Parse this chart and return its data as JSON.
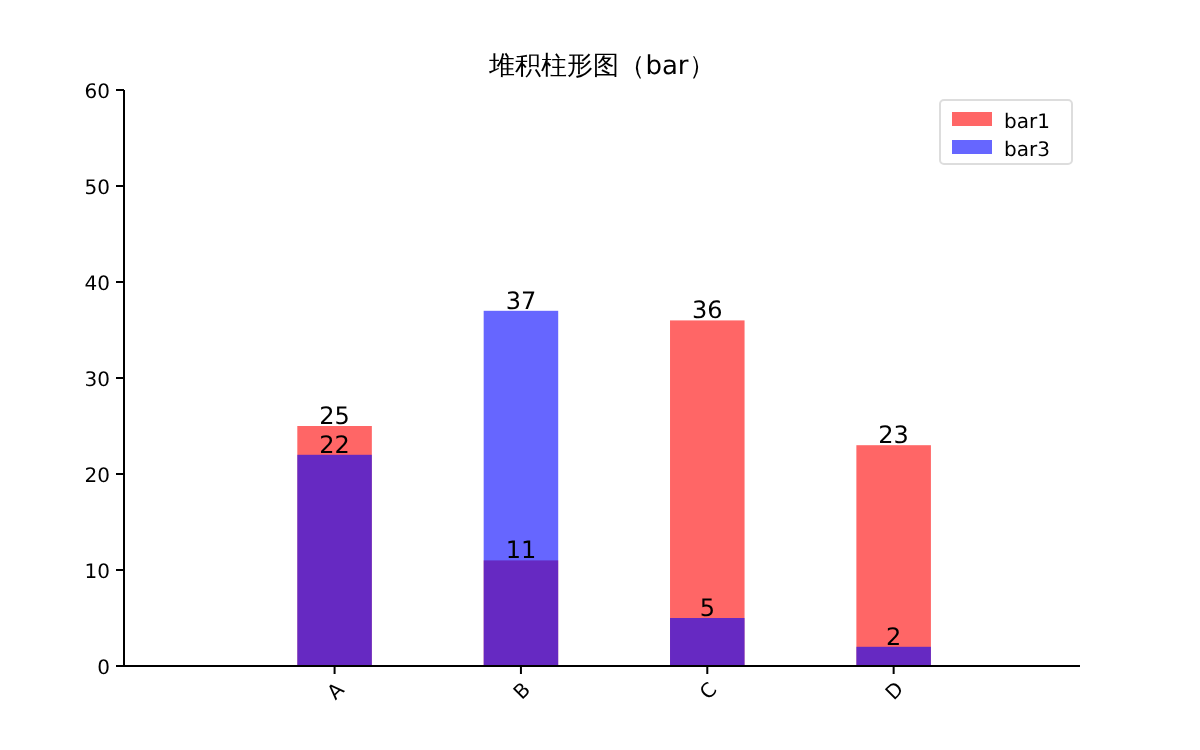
{
  "chart_data": {
    "type": "bar",
    "title": "堆积柱形图（bar）",
    "categories": [
      "A",
      "B",
      "C",
      "D"
    ],
    "series": [
      {
        "name": "bar1",
        "color": "#ff6666",
        "values": [
          25,
          11,
          36,
          23
        ]
      },
      {
        "name": "bar3",
        "color": "#6666ff",
        "values": [
          22,
          37,
          5,
          2
        ]
      }
    ],
    "ylim": [
      0,
      60
    ],
    "yticks": [
      0,
      10,
      20,
      30,
      40,
      50,
      60
    ],
    "data_labels": true,
    "legend": "top right"
  }
}
